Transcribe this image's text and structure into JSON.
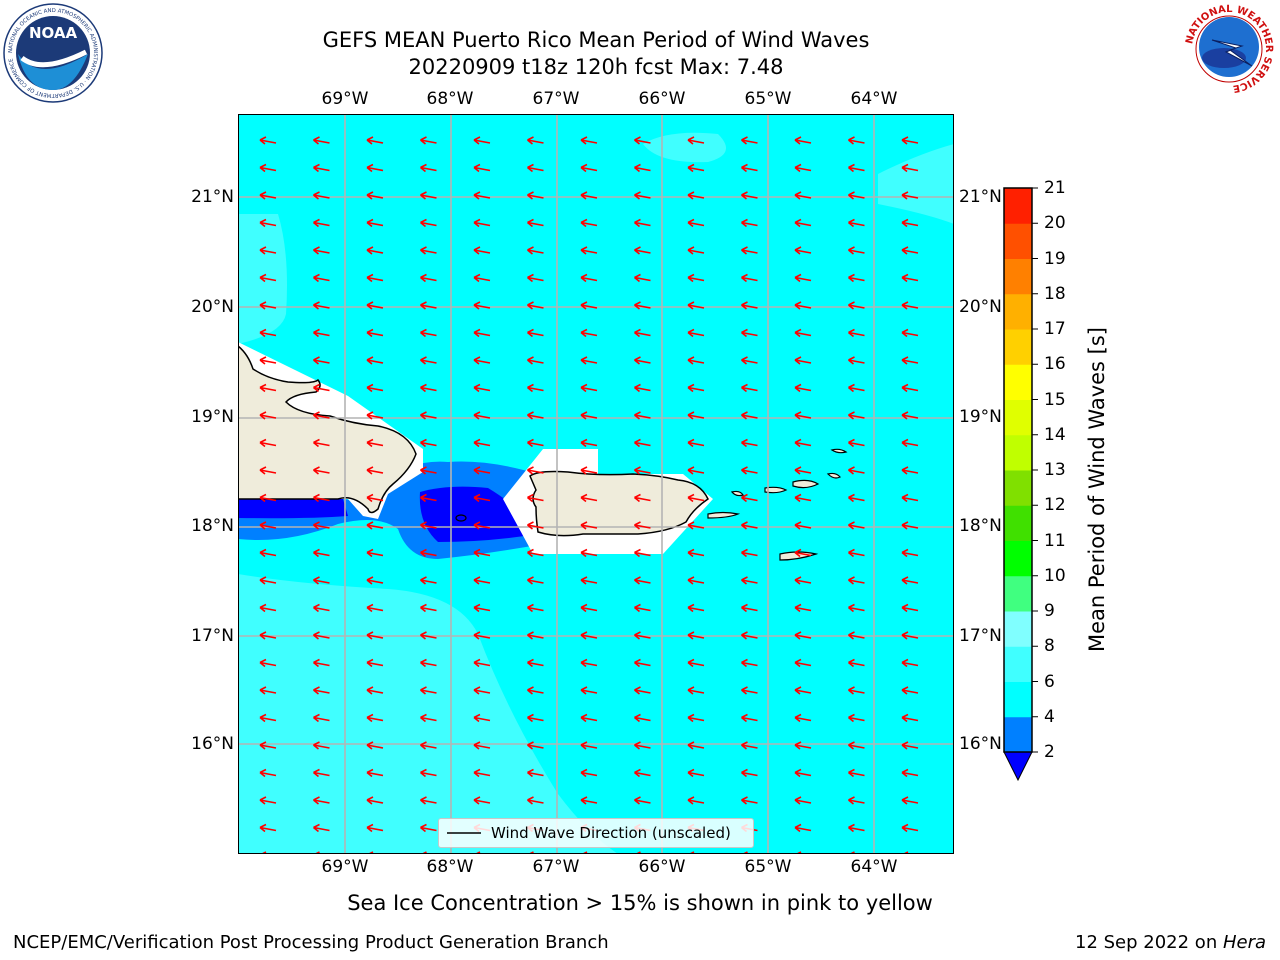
{
  "title": {
    "line1": "GEFS MEAN Puerto Rico Mean Period of Wind Waves",
    "line2": "20220909 t18z 120h fcst   Max: 7.48"
  },
  "logos": {
    "left_ring_text": "NATIONAL OCEANIC AND ATMOSPHERIC ADMINISTRATION · U.S. DEPARTMENT OF COMMERCE",
    "left_center": "NOAA",
    "right_ring_text": "NATIONAL WEATHER SERVICE"
  },
  "map": {
    "lon_labels": [
      "69°W",
      "68°W",
      "67°W",
      "66°W",
      "65°W",
      "64°W"
    ],
    "lat_labels": [
      "21°N",
      "20°N",
      "19°N",
      "18°N",
      "17°N",
      "16°N"
    ],
    "legend_label": "Wind Wave Direction (unscaled)",
    "arrow_color": "#ff0000",
    "ocean_color": "#00ffff",
    "land_color": "#efecdb"
  },
  "colorbar": {
    "label": "Mean Period of Wind Waves [s]",
    "ticks": [
      "2",
      "4",
      "6",
      "8",
      "9",
      "10",
      "11",
      "12",
      "13",
      "14",
      "15",
      "16",
      "17",
      "18",
      "19",
      "20",
      "21"
    ],
    "bands": [
      "#0000ff",
      "#0080ff",
      "#00ffff",
      "#40ffff",
      "#80ffff",
      "#40ff80",
      "#00ff00",
      "#40e000",
      "#80e000",
      "#c0ff00",
      "#e0ff00",
      "#ffff00",
      "#ffd000",
      "#ffb000",
      "#ff8000",
      "#ff5000",
      "#ff2000",
      "#ff0000"
    ],
    "under_color": "#0000ff"
  },
  "note": "Sea Ice Concentration > 15% is shown in pink to yellow",
  "footer": {
    "left": "NCEP/EMC/Verification Post Processing Product Generation Branch",
    "date": "12 Sep 2022 on ",
    "host": "Hera"
  }
}
